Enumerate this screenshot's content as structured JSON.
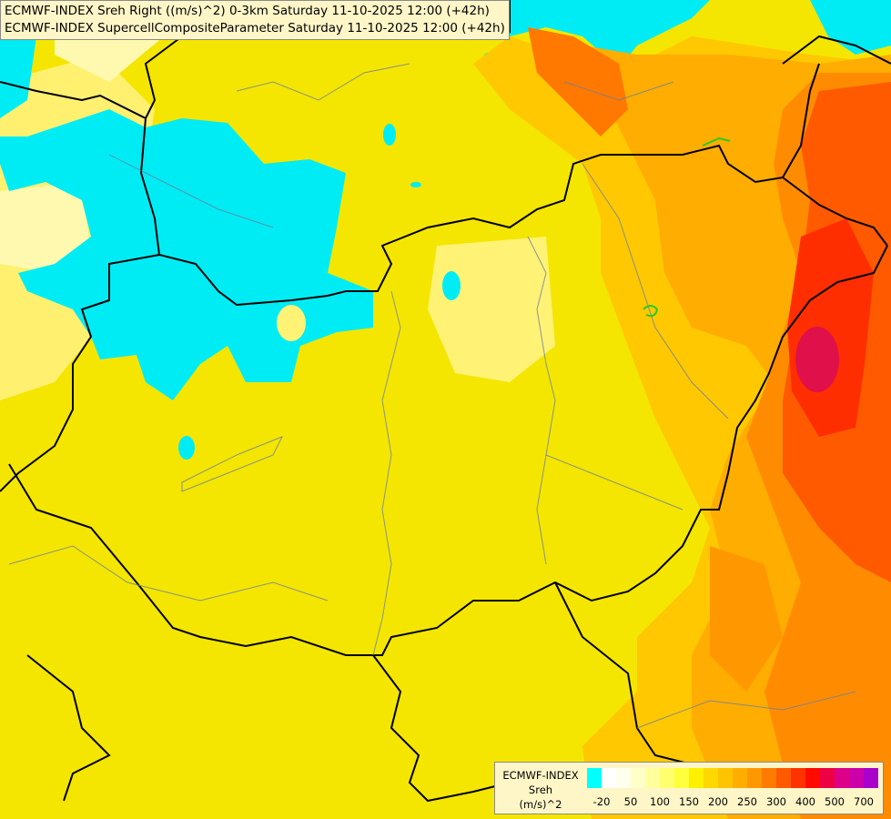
{
  "title": {
    "line1": "ECMWF-INDEX Sreh Right ((m/s)^2) 0-3km Saturday 11-10-2025 12:00 (+42h)",
    "line2": "ECMWF-INDEX SupercellCompositeParameter Saturday 11-10-2025 12:00 (+42h)"
  },
  "legend": {
    "line1": "ECMWF-INDEX",
    "line2": "Sreh",
    "line3": "(m/s)^2",
    "colors": [
      "#00ffff",
      "#ffffff",
      "#ffffee",
      "#ffffc8",
      "#ffff9e",
      "#ffff70",
      "#ffff3c",
      "#fff000",
      "#ffd800",
      "#ffc400",
      "#ffae00",
      "#ff9800",
      "#ff7a00",
      "#ff5a00",
      "#ff3200",
      "#ff0a00",
      "#ee0044",
      "#dd0088",
      "#cc00aa",
      "#aa00cc",
      "#8800dd",
      "#6600cc",
      "#4400aa",
      "#220088",
      "#000066"
    ],
    "ticks": [
      "-20",
      "50",
      "100",
      "150",
      "200",
      "250",
      "300",
      "400",
      "500",
      "700"
    ]
  }
}
